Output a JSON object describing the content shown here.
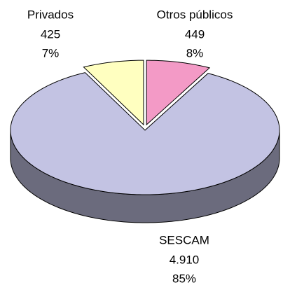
{
  "chart_data": {
    "type": "pie",
    "categories": [
      "Privados",
      "Otros públicos",
      "SESCAM"
    ],
    "values": [
      425,
      449,
      4910
    ],
    "value_labels": [
      "425",
      "449",
      "4.910"
    ],
    "percentages": [
      7,
      8,
      85
    ],
    "percentage_labels": [
      "7%",
      "8%",
      "85%"
    ],
    "colors": [
      "#ffffc0",
      "#f39ac6",
      "#c3c3e3"
    ],
    "three_d": true
  }
}
